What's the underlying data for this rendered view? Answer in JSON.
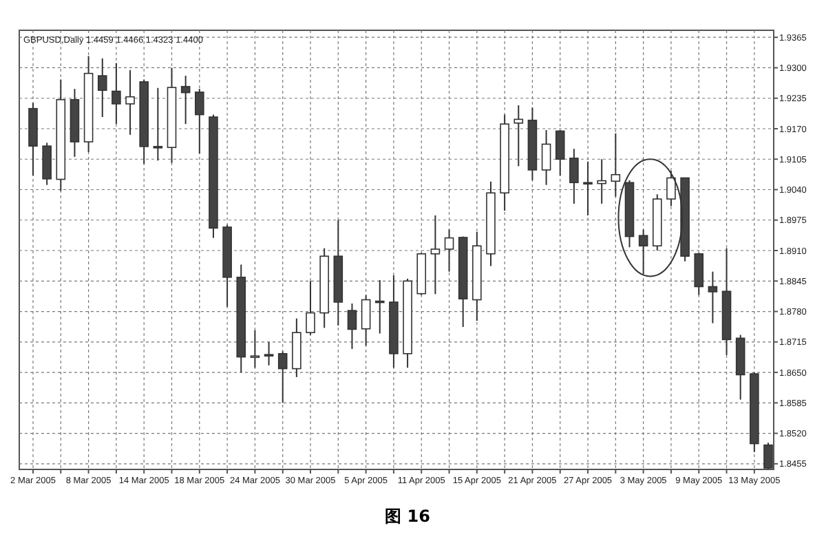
{
  "chart_data": {
    "type": "candlestick",
    "title": "GBPUSD,Daily  1.4459 1.4466 1.4323 1.4400",
    "annotations": [
      "图 16"
    ],
    "categories": [
      "2 Mar 2005",
      null,
      null,
      null,
      "8 Mar 2005",
      null,
      null,
      null,
      "14 Mar 2005",
      null,
      null,
      null,
      "18 Mar 2005",
      null,
      null,
      null,
      "24 Mar 2005",
      null,
      null,
      null,
      "30 Mar 2005",
      null,
      null,
      null,
      "5 Apr 2005",
      null,
      null,
      null,
      "11 Apr 2005",
      null,
      null,
      null,
      "15 Apr 2005",
      null,
      null,
      null,
      "21 Apr 2005",
      null,
      null,
      null,
      "27 Apr 2005",
      null,
      null,
      null,
      "3 May 2005",
      null,
      null,
      null,
      "9 May 2005",
      null,
      null,
      null,
      "13 May 2005",
      null
    ],
    "ohlc": [
      [
        1.9213,
        1.9225,
        1.907,
        1.9133
      ],
      [
        1.9133,
        1.914,
        1.905,
        1.9063
      ],
      [
        1.9062,
        1.9275,
        1.9037,
        1.9232
      ],
      [
        1.9232,
        1.9255,
        1.911,
        1.9142
      ],
      [
        1.9142,
        1.9325,
        1.912,
        1.9288
      ],
      [
        1.9283,
        1.932,
        1.9195,
        1.9252
      ],
      [
        1.925,
        1.931,
        1.918,
        1.9223
      ],
      [
        1.9223,
        1.9295,
        1.9157,
        1.9238
      ],
      [
        1.927,
        1.9275,
        1.9095,
        1.9132
      ],
      [
        1.9132,
        1.9257,
        1.9102,
        1.913
      ],
      [
        1.913,
        1.93,
        1.9097,
        1.9258
      ],
      [
        1.926,
        1.9283,
        1.918,
        1.9247
      ],
      [
        1.9248,
        1.9255,
        1.9117,
        1.92
      ],
      [
        1.9195,
        1.92,
        1.8937,
        1.8958
      ],
      [
        1.896,
        1.8965,
        1.879,
        1.8853
      ],
      [
        1.8853,
        1.888,
        1.865,
        1.8683
      ],
      [
        1.8683,
        1.874,
        1.866,
        1.8685
      ],
      [
        1.8688,
        1.8715,
        1.8665,
        1.8686
      ],
      [
        1.869,
        1.8695,
        1.8585,
        1.8658
      ],
      [
        1.8658,
        1.8765,
        1.864,
        1.8735
      ],
      [
        1.8735,
        1.8845,
        1.873,
        1.8777
      ],
      [
        1.8777,
        1.8915,
        1.8745,
        1.8898
      ],
      [
        1.8898,
        1.8975,
        1.875,
        1.88
      ],
      [
        1.8782,
        1.8797,
        1.87,
        1.8742
      ],
      [
        1.8743,
        1.8815,
        1.8707,
        1.8805
      ],
      [
        1.8802,
        1.8847,
        1.8733,
        1.88
      ],
      [
        1.88,
        1.8857,
        1.866,
        1.869
      ],
      [
        1.869,
        1.885,
        1.866,
        1.8845
      ],
      [
        1.8818,
        1.8905,
        1.8815,
        1.8903
      ],
      [
        1.8903,
        1.8985,
        1.8817,
        1.8913
      ],
      [
        1.8913,
        1.8955,
        1.8865,
        1.8937
      ],
      [
        1.8938,
        1.894,
        1.8747,
        1.8807
      ],
      [
        1.8805,
        1.895,
        1.876,
        1.892
      ],
      [
        1.8903,
        1.9057,
        1.8877,
        1.9033
      ],
      [
        1.9033,
        1.92,
        1.8995,
        1.918
      ],
      [
        1.9182,
        1.922,
        1.909,
        1.919
      ],
      [
        1.9188,
        1.9215,
        1.906,
        1.9082
      ],
      [
        1.9082,
        1.9167,
        1.905,
        1.9137
      ],
      [
        1.9165,
        1.9167,
        1.907,
        1.9105
      ],
      [
        1.9107,
        1.9127,
        1.901,
        1.9055
      ],
      [
        1.9055,
        1.91,
        1.8985,
        1.9053
      ],
      [
        1.9053,
        1.9105,
        1.901,
        1.9059
      ],
      [
        1.9058,
        1.916,
        1.9025,
        1.9072
      ],
      [
        1.9055,
        1.906,
        1.8917,
        1.894
      ],
      [
        1.8942,
        1.8955,
        1.886,
        1.892
      ],
      [
        1.892,
        1.903,
        1.891,
        1.902
      ],
      [
        1.902,
        1.908,
        1.9005,
        1.9065
      ],
      [
        1.9065,
        1.9065,
        1.8887,
        1.8898
      ],
      [
        1.8903,
        1.8905,
        1.8815,
        1.8833
      ],
      [
        1.8833,
        1.8865,
        1.8755,
        1.8822
      ],
      [
        1.8823,
        1.8915,
        1.8687,
        1.872
      ],
      [
        1.8723,
        1.873,
        1.8592,
        1.8645
      ],
      [
        1.8647,
        1.865,
        1.848,
        1.8498
      ],
      [
        1.8495,
        1.85,
        1.8444,
        1.8446
      ]
    ],
    "ylim": [
      1.8443,
      1.938
    ],
    "yticks": [
      {
        "value": 1.9365,
        "label": "1.9365"
      },
      {
        "value": 1.93,
        "label": "1.9300"
      },
      {
        "value": 1.9235,
        "label": "1.9235"
      },
      {
        "value": 1.917,
        "label": "1.9170"
      },
      {
        "value": 1.9105,
        "label": "1.9105"
      },
      {
        "value": 1.904,
        "label": "1.9040"
      },
      {
        "value": 1.8975,
        "label": "1.8975"
      },
      {
        "value": 1.891,
        "label": "1.8910"
      },
      {
        "value": 1.8845,
        "label": "1.8845"
      },
      {
        "value": 1.878,
        "label": "1.8780"
      },
      {
        "value": 1.8715,
        "label": "1.8715"
      },
      {
        "value": 1.865,
        "label": "1.8650"
      },
      {
        "value": 1.8585,
        "label": "1.8585"
      },
      {
        "value": 1.852,
        "label": "1.8520"
      },
      {
        "value": 1.8455,
        "label": "1.8455"
      }
    ],
    "grid": true
  }
}
